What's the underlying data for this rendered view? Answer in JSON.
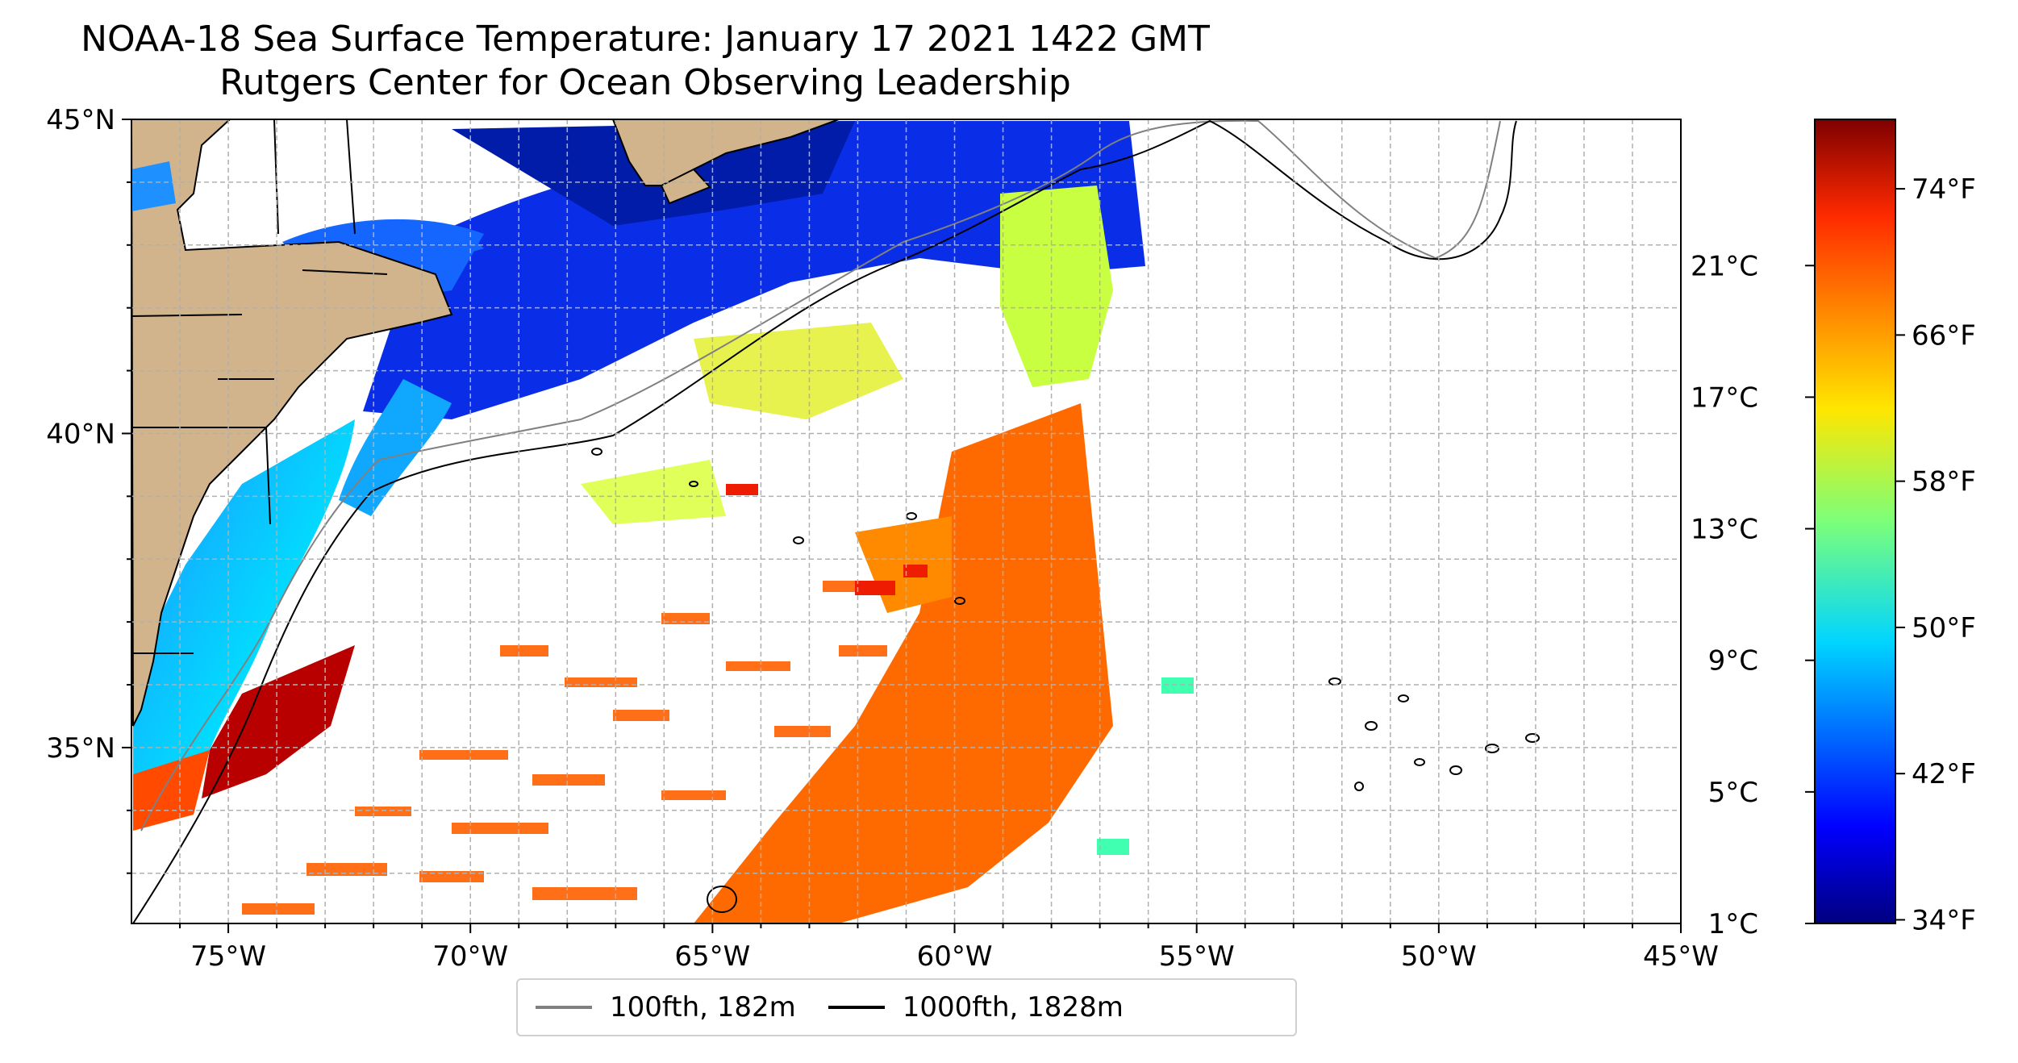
{
  "title": {
    "line1": "NOAA-18 Sea Surface Temperature: January 17 2021 1422 GMT",
    "line2": "Rutgers Center for Ocean Observing Leadership"
  },
  "map": {
    "lon_range": [
      -77,
      -45
    ],
    "lat_range": [
      32.2,
      45
    ],
    "grid": "dashed, light gray",
    "land_color": "#D2B48C",
    "lon_ticks": [
      "75°W",
      "70°W",
      "65°W",
      "60°W",
      "55°W",
      "50°W",
      "45°W"
    ],
    "lat_ticks": [
      "45°N",
      "40°N",
      "35°N"
    ]
  },
  "colorbar": {
    "colormap": "jet",
    "celsius_ticks": [
      "21°C",
      "17°C",
      "13°C",
      "9°C",
      "5°C",
      "1°C"
    ],
    "fahrenheit_ticks": [
      "74°F",
      "66°F",
      "58°F",
      "50°F",
      "42°F",
      "34°F"
    ]
  },
  "legend": {
    "items": [
      {
        "label": "100fth, 182m",
        "color": "#808080"
      },
      {
        "label": "1000fth, 1828m",
        "color": "#000000"
      }
    ]
  }
}
